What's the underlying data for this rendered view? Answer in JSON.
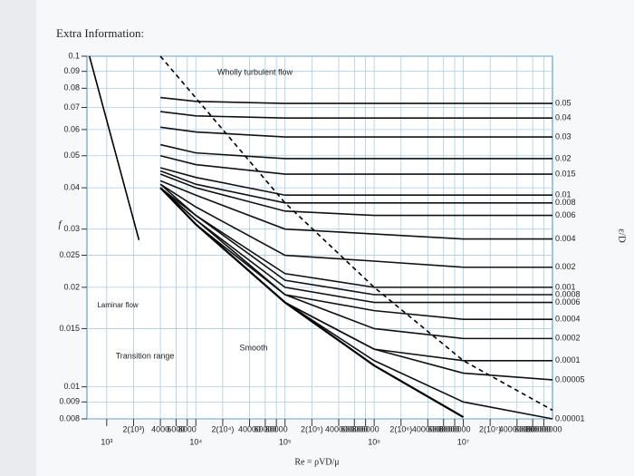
{
  "page_title": "Extra Information:",
  "chart_data": {
    "type": "line",
    "x_log": true,
    "y_log": true,
    "grid": true,
    "xlabel": "Re = ρVD/μ",
    "ylabel": "f",
    "legend_title": "ε/D",
    "xlim": [
      600,
      100000000
    ],
    "ylim": [
      0.008,
      0.1
    ],
    "xticks": [
      {
        "value": 1000,
        "label": "10³"
      },
      {
        "value": 2000,
        "label": "2(10³)"
      },
      4000,
      6000,
      8000,
      {
        "value": 10000,
        "label": "10⁴"
      },
      {
        "value": 20000,
        "label": "2(10⁴)"
      },
      40000,
      60000,
      80000,
      {
        "value": 100000,
        "label": "10⁵"
      },
      {
        "value": 200000,
        "label": "2(10⁵)"
      },
      400000,
      600000,
      800000,
      {
        "value": 1000000,
        "label": "10⁶"
      },
      {
        "value": 2000000,
        "label": "2(10⁶)"
      },
      4000000,
      6000000,
      8000000,
      {
        "value": 10000000,
        "label": "10⁷"
      },
      {
        "value": 20000000,
        "label": "2(10⁷)"
      },
      40000000,
      60000000,
      80000000
    ],
    "yticks": [
      0.1,
      0.09,
      0.08,
      0.07,
      0.06,
      0.05,
      0.04,
      0.03,
      0.025,
      0.02,
      0.015,
      0.01,
      0.009,
      0.008
    ],
    "x": [
      4000,
      10000,
      100000,
      1000000,
      10000000,
      100000000
    ],
    "series": [
      {
        "name": "0.05",
        "color": "#111",
        "values": [
          0.075,
          0.073,
          0.072,
          0.072,
          0.072,
          0.072
        ]
      },
      {
        "name": "0.04",
        "color": "#111",
        "values": [
          0.068,
          0.066,
          0.065,
          0.065,
          0.065,
          0.065
        ]
      },
      {
        "name": "0.03",
        "color": "#111",
        "values": [
          0.061,
          0.059,
          0.057,
          0.057,
          0.057,
          0.057
        ]
      },
      {
        "name": "0.02",
        "color": "#111",
        "values": [
          0.054,
          0.051,
          0.049,
          0.049,
          0.049,
          0.049
        ]
      },
      {
        "name": "0.015",
        "color": "#111",
        "values": [
          0.05,
          0.047,
          0.044,
          0.044,
          0.044,
          0.044
        ]
      },
      {
        "name": "0.01",
        "color": "#111",
        "values": [
          0.046,
          0.043,
          0.038,
          0.038,
          0.038,
          0.038
        ]
      },
      {
        "name": "0.008",
        "color": "#111",
        "values": [
          0.045,
          0.041,
          0.036,
          0.036,
          0.036,
          0.036
        ]
      },
      {
        "name": "0.006",
        "color": "#111",
        "values": [
          0.044,
          0.04,
          0.034,
          0.033,
          0.033,
          0.033
        ]
      },
      {
        "name": "0.004",
        "color": "#111",
        "values": [
          0.042,
          0.038,
          0.03,
          0.029,
          0.028,
          0.028
        ]
      },
      {
        "name": "0.002",
        "color": "#111",
        "values": [
          0.041,
          0.035,
          0.025,
          0.024,
          0.023,
          0.023
        ]
      },
      {
        "name": "0.001",
        "color": "#111",
        "values": [
          0.041,
          0.033,
          0.022,
          0.02,
          0.02,
          0.02
        ]
      },
      {
        "name": "0.0008",
        "color": "#111",
        "values": [
          0.04,
          0.033,
          0.021,
          0.019,
          0.019,
          0.019
        ]
      },
      {
        "name": "0.0006",
        "color": "#111",
        "values": [
          0.04,
          0.032,
          0.02,
          0.018,
          0.018,
          0.018
        ]
      },
      {
        "name": "0.0004",
        "color": "#111",
        "values": [
          0.04,
          0.032,
          0.019,
          0.017,
          0.016,
          0.016
        ]
      },
      {
        "name": "0.0002",
        "color": "#111",
        "values": [
          0.04,
          0.031,
          0.019,
          0.015,
          0.014,
          0.014
        ]
      },
      {
        "name": "0.0001",
        "color": "#111",
        "values": [
          0.04,
          0.031,
          0.018,
          0.013,
          0.012,
          0.012
        ]
      },
      {
        "name": "0.00005",
        "color": "#111",
        "values": [
          0.04,
          0.031,
          0.018,
          0.013,
          0.011,
          0.0105
        ]
      },
      {
        "name": "0.00001",
        "color": "#111",
        "values": [
          0.04,
          0.031,
          0.018,
          0.012,
          0.009,
          0.008
        ]
      }
    ],
    "smooth": {
      "x": [
        4000,
        10000,
        100000,
        1000000,
        10000000
      ],
      "values": [
        0.04,
        0.031,
        0.018,
        0.0116,
        0.0081
      ]
    },
    "laminar": {
      "x": [
        640,
        2300
      ],
      "values": [
        0.1,
        0.0278
      ]
    },
    "boundary": {
      "x": [
        4000,
        100000,
        1000000,
        10000000,
        100000000
      ],
      "values": [
        0.1,
        0.036,
        0.02,
        0.012,
        0.0085
      ]
    },
    "annotations": [
      "Wholly turbulent flow",
      "Laminar flow",
      "Transition range",
      "Smooth"
    ]
  }
}
